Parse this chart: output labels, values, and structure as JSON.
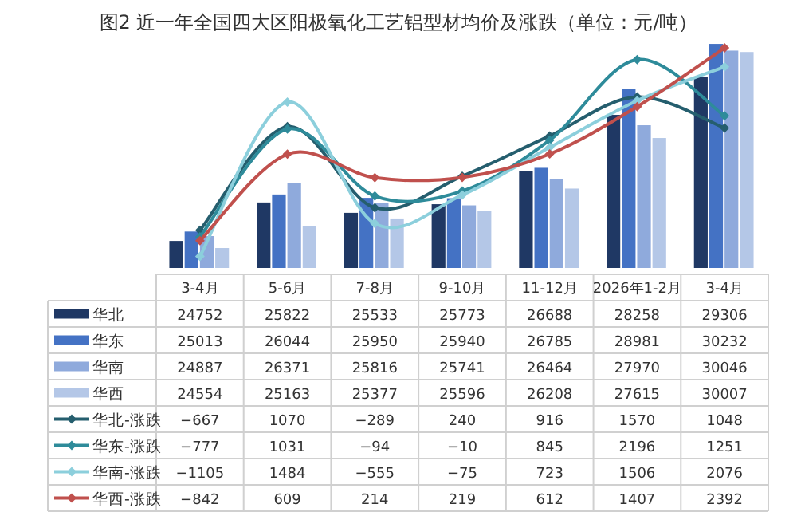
{
  "chart_data": {
    "type": "bar",
    "title": "图2  近一年全国四大区阳极氧化工艺铝型材均价及涨跌（单位：元/吨）",
    "categories": [
      "3-4月",
      "5-6月",
      "7-8月",
      "9-10月",
      "11-12月",
      "2026年1-2月",
      "3-4月"
    ],
    "series": [
      {
        "name": "华北",
        "color": "#1f3864",
        "values": [
          24752,
          25822,
          25533,
          25773,
          26688,
          28258,
          29306
        ]
      },
      {
        "name": "华东",
        "color": "#4472c4",
        "values": [
          25013,
          26044,
          25950,
          25940,
          26785,
          28981,
          30232
        ]
      },
      {
        "name": "华南",
        "color": "#8faadc",
        "values": [
          24887,
          26371,
          25816,
          25741,
          26464,
          27970,
          30046
        ]
      },
      {
        "name": "华西",
        "color": "#b4c7e7",
        "values": [
          24554,
          25163,
          25377,
          25596,
          26208,
          27615,
          30007
        ]
      },
      {
        "name": "华北-涨跌",
        "type": "line",
        "axis": "y2",
        "color": "#255e6e",
        "values": [
          -667,
          1070,
          -289,
          240,
          916,
          1570,
          1048
        ]
      },
      {
        "name": "华东-涨跌",
        "type": "line",
        "axis": "y2",
        "color": "#2e8b9a",
        "values": [
          -777,
          1031,
          -94,
          -10,
          845,
          2196,
          1251
        ]
      },
      {
        "name": "华南-涨跌",
        "type": "line",
        "axis": "y2",
        "color": "#8ccfdc",
        "values": [
          -1105,
          1484,
          -555,
          -75,
          723,
          1506,
          2076
        ]
      },
      {
        "name": "华西-涨跌",
        "type": "line",
        "axis": "y2",
        "color": "#c0504d",
        "values": [
          -842,
          609,
          214,
          219,
          612,
          1407,
          2392
        ]
      }
    ],
    "ylim": [
      24000,
      30300
    ],
    "y2lim": [
      -1300,
      2500
    ],
    "tick_labels": "x",
    "data_labels": true,
    "legend": "bottom",
    "marker": "diamond"
  }
}
